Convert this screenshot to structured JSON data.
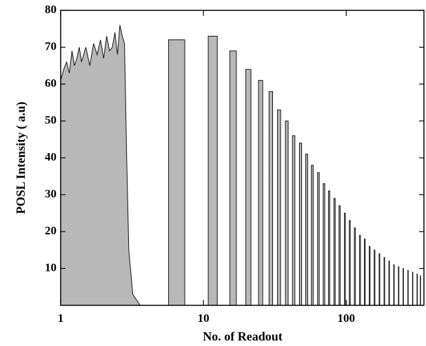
{
  "chart_data": {
    "type": "area",
    "x_label": "No. of  Readout",
    "y_label": "POSL Intensity ( a.u)",
    "xscale": "log",
    "xlim": [
      1,
      350
    ],
    "xticks": [
      1,
      10,
      100
    ],
    "ylim": [
      0,
      80
    ],
    "yticks": [
      10,
      20,
      30,
      40,
      50,
      60,
      70,
      80
    ],
    "color": "#b8b8b8",
    "line_color": "#111111",
    "x": [
      1,
      1.05,
      1.1,
      1.15,
      1.2,
      1.25,
      1.3,
      1.35,
      1.4,
      1.5,
      1.6,
      1.7,
      1.8,
      1.9,
      2.0,
      2.1,
      2.2,
      2.3,
      2.4,
      2.5,
      2.6,
      2.7,
      2.8,
      2.9,
      3.0,
      3.2,
      3.6,
      5.7,
      5.7,
      7.4,
      7.4,
      10.8,
      10.8,
      12.5,
      12.5,
      15.3,
      15.3,
      17,
      17,
      19.8,
      19.8,
      21.5,
      21.5,
      24.3,
      24.3,
      26,
      26,
      28.8,
      28.8,
      30.5,
      30.5,
      33,
      33,
      34.7,
      34.7,
      37.5,
      37.5,
      39.2,
      39.2,
      42,
      42,
      43.7,
      43.7,
      47,
      47,
      48.7,
      48.7,
      52,
      52,
      53.7,
      53.7,
      57,
      57,
      58.7,
      58.7,
      63,
      63,
      64.7,
      64.7,
      69,
      69,
      70.7,
      70.7,
      75,
      75,
      76.7,
      76.7,
      82,
      82,
      83.7,
      83.7,
      89,
      89,
      90.7,
      90.7,
      97,
      97,
      98.7,
      98.7,
      105,
      105,
      106.7,
      106.7,
      114,
      114,
      115.7,
      115.7,
      124,
      124,
      125.7,
      125.7,
      134,
      134,
      135.7,
      135.7,
      145,
      145,
      146.7,
      146.7,
      157,
      157,
      158.7,
      158.7,
      170,
      170,
      171.7,
      171.7,
      184,
      184,
      185.7,
      185.7,
      199,
      199,
      200.7,
      200.7,
      215,
      215,
      216.7,
      216.7,
      232,
      232,
      233.7,
      233.7,
      250,
      250,
      251.7,
      251.7,
      270,
      270,
      271.7,
      271.7,
      291,
      291,
      292.7,
      292.7,
      313,
      313,
      314.7,
      314.7,
      330,
      330,
      331.7,
      331.7
    ],
    "values": [
      61,
      64,
      66,
      63,
      69,
      65,
      67,
      70,
      66,
      70,
      65,
      71,
      68,
      72,
      67,
      73,
      69,
      70,
      74,
      68,
      76,
      73,
      71,
      40,
      15,
      3,
      0,
      0,
      72,
      72,
      0,
      0,
      73,
      73,
      0,
      0,
      69,
      69,
      0,
      0,
      64,
      64,
      0,
      0,
      61,
      61,
      0,
      0,
      58,
      58,
      0,
      0,
      53,
      53,
      0,
      0,
      50,
      50,
      0,
      0,
      46,
      46,
      0,
      0,
      44,
      44,
      0,
      0,
      41,
      41,
      0,
      0,
      38,
      38,
      0,
      0,
      36,
      36,
      0,
      0,
      33,
      33,
      0,
      0,
      31,
      31,
      0,
      0,
      29,
      29,
      0,
      0,
      27,
      27,
      0,
      0,
      25,
      25,
      0,
      0,
      23,
      23,
      0,
      0,
      21,
      21,
      0,
      0,
      19,
      19,
      0,
      0,
      18,
      18,
      0,
      0,
      16,
      16,
      0,
      0,
      15,
      15,
      0,
      0,
      14,
      14,
      0,
      0,
      13,
      13,
      0,
      0,
      12,
      12,
      0,
      0,
      11,
      11,
      0,
      0,
      10.5,
      10.5,
      0,
      0,
      10,
      10,
      0,
      0,
      9.5,
      9.5,
      0,
      0,
      9,
      9,
      0,
      0,
      8.5,
      8.5,
      0,
      0,
      8,
      8,
      0
    ]
  }
}
